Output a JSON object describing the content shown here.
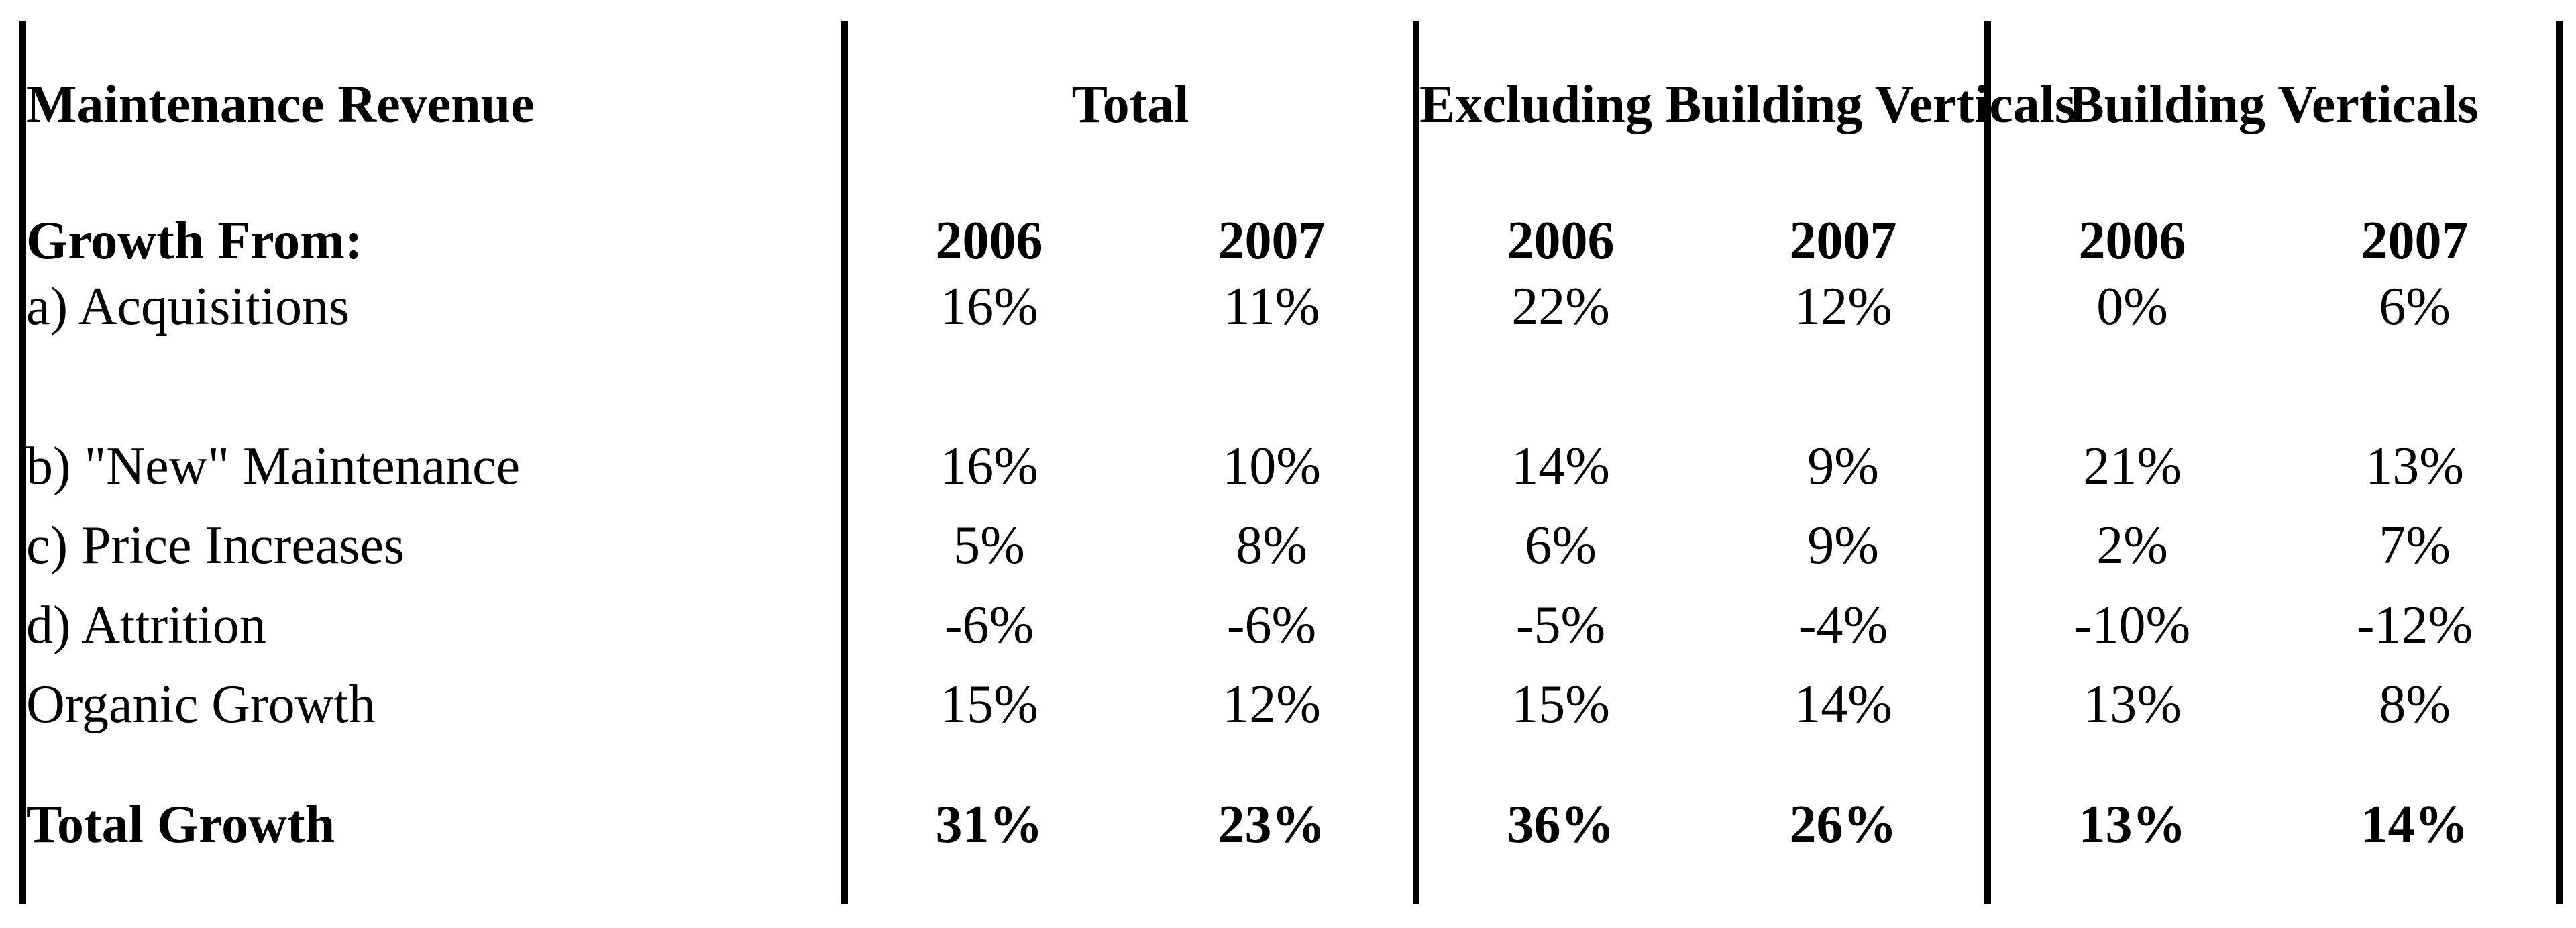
{
  "table": {
    "title": "Maintenance Revenue",
    "groups": [
      {
        "label": "Total"
      },
      {
        "label": "Excluding Building Verticals"
      },
      {
        "label": "Building Verticals"
      }
    ],
    "growth_from_label": "Growth From:",
    "years": [
      "2006",
      "2007",
      "2006",
      "2007",
      "2006",
      "2007"
    ],
    "rows": [
      {
        "label": "a) Acquisitions",
        "values": [
          "16%",
          "11%",
          "22%",
          "12%",
          "0%",
          "6%"
        ]
      },
      {
        "label": "b) \"New\" Maintenance",
        "values": [
          "16%",
          "10%",
          "14%",
          "9%",
          "21%",
          "13%"
        ]
      },
      {
        "label": "c) Price Increases",
        "values": [
          "5%",
          "8%",
          "6%",
          "9%",
          "2%",
          "7%"
        ]
      },
      {
        "label": "d) Attrition",
        "values": [
          "-6%",
          "-6%",
          "-5%",
          "-4%",
          "-10%",
          "-12%"
        ]
      },
      {
        "label": "Organic Growth",
        "values": [
          "15%",
          "12%",
          "15%",
          "14%",
          "13%",
          "8%"
        ]
      },
      {
        "label": "Total Growth",
        "values": [
          "31%",
          "23%",
          "36%",
          "26%",
          "13%",
          "14%"
        ]
      }
    ]
  }
}
